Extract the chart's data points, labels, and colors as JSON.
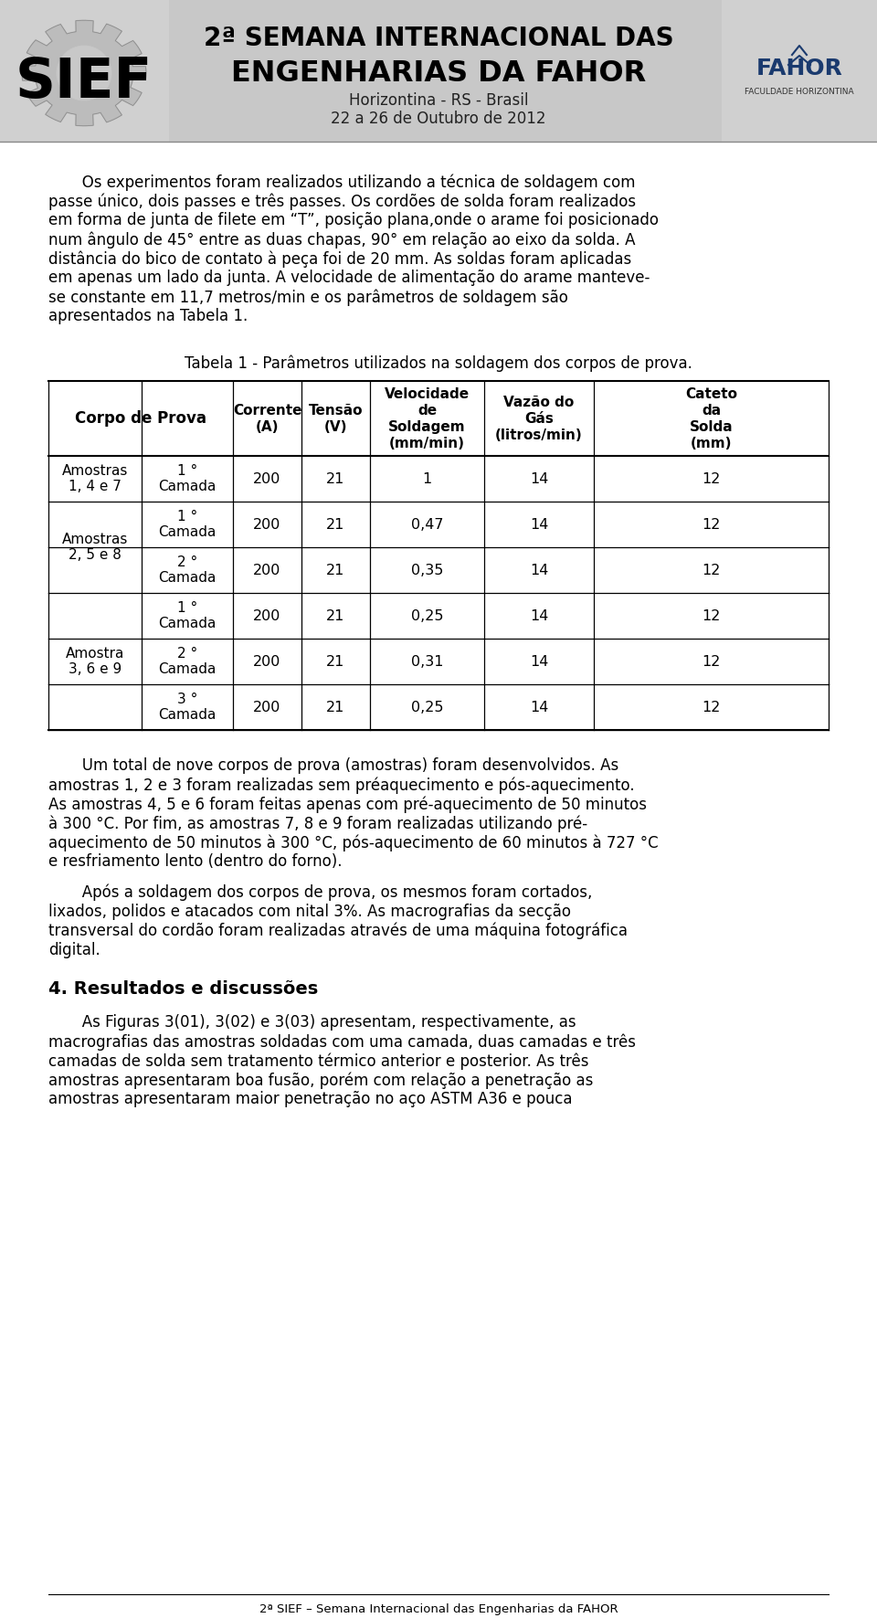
{
  "header": {
    "bg_color": "#d8d8d8",
    "title_line1": "2ª SEMANA INTERNACIONAL DAS",
    "title_line2": "ENGENHARIAS DA FAHOR",
    "subtitle": "Horizontina - RS - Brasil",
    "date": "22 a 26 de Outubro de 2012",
    "sief_color": "#ffffff",
    "fahor_text": "FAHOR",
    "fahor_sub": "FACULDADE HORIZONTINA"
  },
  "para1_lines": [
    "Os experimentos foram realizados utilizando a técnica de soldagem com",
    "passe único, dois passes e três passes. Os cordões de solda foram realizados",
    "em forma de junta de filete em “T”, posição plana,onde o arame foi posicionado",
    "num ângulo de 45° entre as duas chapas, 90° em relação ao eixo da solda. A",
    "distância do bico de contato à peça foi de 20 mm. As soldas foram aplicadas",
    "em apenas um lado da junta. A velocidade de alimentação do arame manteve-",
    "se constante em 11,7 metros/min e os parâmetros de soldagem são",
    "apresentados na Tabela 1."
  ],
  "table_title": "Tabela 1 - Parâmetros utilizados na soldagem dos corpos de prova.",
  "table_col_labels": [
    "Corpo de Prova",
    "Corrente\n(A)",
    "Tensão\n(V)",
    "Velocidade\nde\nSoldagem\n(mm/min)",
    "Vazão do\nGás\n(litros/min)",
    "Cateto\nda\nSolda\n(mm)"
  ],
  "table_rows": [
    [
      "Amostras\n1, 4 e 7",
      "1 °\nCamada",
      "200",
      "21",
      "1",
      "14",
      "12"
    ],
    [
      "Amostras\n2, 5 e 8",
      "1 °\nCamada",
      "200",
      "21",
      "0,47",
      "14",
      "12"
    ],
    [
      "",
      "2 °\nCamada",
      "200",
      "21",
      "0,35",
      "14",
      "12"
    ],
    [
      "Amostra\n3, 6 e 9",
      "1 °\nCamada",
      "200",
      "21",
      "0,25",
      "14",
      "12"
    ],
    [
      "",
      "2 °\nCamada",
      "200",
      "21",
      "0,31",
      "14",
      "12"
    ],
    [
      "",
      "3 °\nCamada",
      "200",
      "21",
      "0,25",
      "14",
      "12"
    ]
  ],
  "para2_lines": [
    "       Um total de nove corpos de prova (amostras) foram desenvolvidos. As",
    "amostras 1, 2 e 3 foram realizadas sem préaquecimento e pós-aquecimento.",
    "As amostras 4, 5 e 6 foram feitas apenas com pré-aquecimento de 50 minutos",
    "à 300 °C. Por fim, as amostras 7, 8 e 9 foram realizadas utilizando pré-",
    "aquecimento de 50 minutos à 300 °C, pós-aquecimento de 60 minutos à 727 °C",
    "e resfriamento lento (dentro do forno)."
  ],
  "para3_lines": [
    "       Após a soldagem dos corpos de prova, os mesmos foram cortados,",
    "lixados, polidos e atacados com nital 3%. As macrografias da secção",
    "transversal do cordão foram realizadas através de uma máquina fotográfica",
    "digital."
  ],
  "section_title": "4. Resultados e discussões",
  "section_para_lines": [
    "       As Figuras 3(01), 3(02) e 3(03) apresentam, respectivamente, as",
    "macrografias das amostras soldadas com uma camada, duas camadas e três",
    "camadas de solda sem tratamento térmico anterior e posterior. As três",
    "amostras apresentaram boa fusão, porém com relação a penetração as",
    "amostras apresentaram maior penetração no aço ASTM A36 e pouca"
  ],
  "footer_text": "2ª SIEF – Semana Internacional das Engenharias da FAHOR",
  "bg_color": "#ffffff"
}
